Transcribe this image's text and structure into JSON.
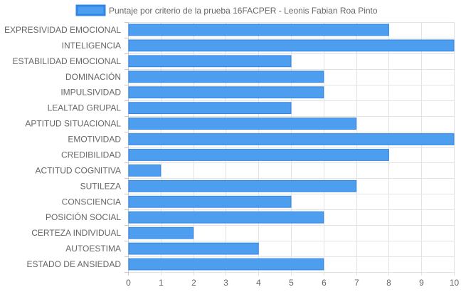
{
  "chart_data": {
    "type": "bar",
    "orientation": "horizontal",
    "title": "",
    "xlabel": "",
    "ylabel": "",
    "xlim": [
      0,
      10
    ],
    "x_ticks": [
      "0",
      "1",
      "2",
      "3",
      "4",
      "5",
      "6",
      "7",
      "8",
      "9",
      "10"
    ],
    "grid": true,
    "legend": {
      "position": "top-center",
      "label": "Puntaje por criterio de la prueba 16FACPER - Leonis Fabian Roa Pinto"
    },
    "categories": [
      "EXPRESIVIDAD EMOCIONAL",
      "INTELIGENCIA",
      "ESTABILIDAD EMOCIONAL",
      "DOMINACIÓN",
      "IMPULSIVIDAD",
      "LEALTAD GRUPAL",
      "APTITUD SITUACIONAL",
      "EMOTIVIDAD",
      "CREDIBILIDAD",
      "ACTITUD COGNITIVA",
      "SUTILEZA",
      "CONSCIENCIA",
      "POSICIÓN SOCIAL",
      "CERTEZA INDIVIDUAL",
      "AUTOESTIMA",
      "ESTADO DE ANSIEDAD"
    ],
    "series": [
      {
        "name": "Puntaje por criterio de la prueba 16FACPER - Leonis Fabian Roa Pinto",
        "values": [
          8,
          10,
          5,
          6,
          6,
          5,
          7,
          10,
          8,
          1,
          7,
          5,
          6,
          2,
          4,
          6
        ],
        "color": "#4e9ef0",
        "border_color": "#2f86e6"
      }
    ],
    "grid_color": "#e3e3e3",
    "axis_color": "#c8c8c8"
  }
}
